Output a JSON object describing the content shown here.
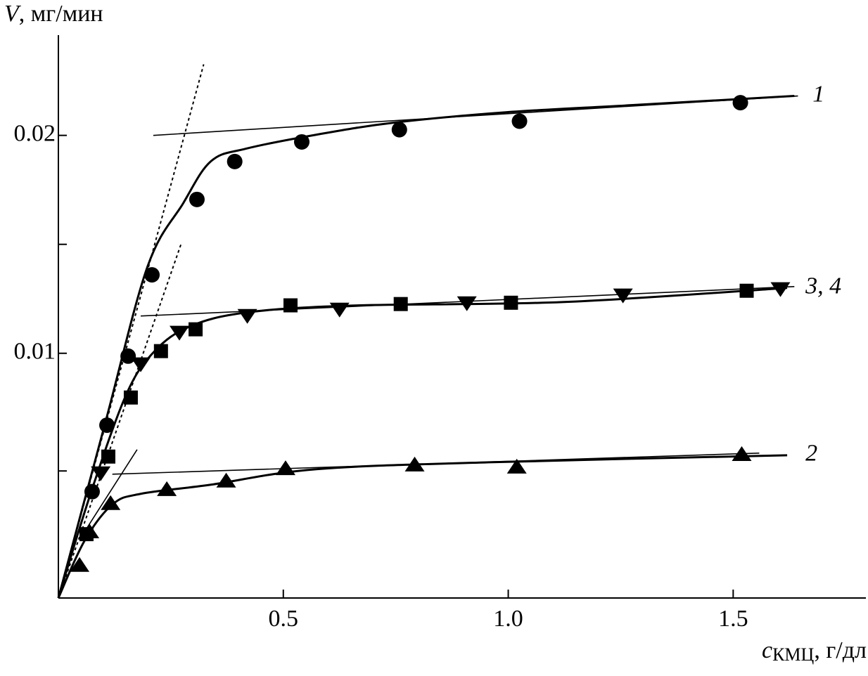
{
  "chart_data": {
    "type": "scatter",
    "y_label": {
      "symbol": "V",
      "unit": ", мг/мин"
    },
    "x_label": {
      "symbol": "c",
      "subscript": "КМЦ",
      "unit": ", г/дл"
    },
    "xlim": [
      0,
      1.795
    ],
    "ylim": [
      -0.00123,
      0.0246
    ],
    "xticks": [
      0.5,
      {
        "value": 1,
        "label": "1.0"
      },
      1.5
    ],
    "yticks": [
      0.01,
      0.02
    ],
    "yminorticks": [
      0.0046,
      0.015
    ],
    "series": [
      {
        "marker": "circle",
        "color": "#000000",
        "x": [
          0.075,
          0.108,
          0.155,
          0.208,
          0.308,
          0.392,
          0.541,
          0.758,
          1.025,
          1.516
        ],
        "values": [
          0.00365,
          0.0067,
          0.00987,
          0.0136,
          0.01706,
          0.0188,
          0.0197,
          0.02026,
          0.02065,
          0.0215
        ]
      },
      {
        "marker": "triangle-up",
        "color": "#000000",
        "x": [
          0.047,
          0.069,
          0.116,
          0.241,
          0.373,
          0.505,
          0.792,
          1.019,
          1.519
        ],
        "values": [
          0.00026,
          0.0018,
          0.0031,
          0.00374,
          0.00413,
          0.0047,
          0.00487,
          0.00477,
          0.00535
        ]
      },
      {
        "marker": "square",
        "color": "#000000",
        "x": [
          0.0625,
          0.111,
          0.161,
          0.228,
          0.305,
          0.516,
          0.761,
          1.006,
          1.53
        ],
        "values": [
          0.0017,
          0.00526,
          0.00797,
          0.0101,
          0.0111,
          0.0122,
          0.01226,
          0.01232,
          0.01287
        ]
      },
      {
        "marker": "triangle-down",
        "color": "#000000",
        "x": [
          0.094,
          0.183,
          0.269,
          0.42,
          0.625,
          0.908,
          1.255,
          1.605
        ],
        "values": [
          0.00452,
          0.00952,
          0.01097,
          0.01174,
          0.01203,
          0.01232,
          0.01268,
          0.01297
        ]
      }
    ],
    "curves": [
      {
        "x": [
          0,
          0.105,
          0.198,
          0.277,
          0.339,
          0.417,
          0.573,
          0.745,
          0.995,
          1.277,
          1.636
        ],
        "values": [
          -0.00123,
          0.00687,
          0.01397,
          0.01687,
          0.01881,
          0.01939,
          0.02003,
          0.02058,
          0.02106,
          0.02139,
          0.02181
        ]
      },
      {
        "x": [
          0,
          0.058,
          0.12,
          0.183,
          0.339,
          0.573,
          0.964,
          1.62
        ],
        "values": [
          -0.00123,
          0.00139,
          0.00306,
          0.00355,
          0.00397,
          0.00468,
          0.005,
          0.00532
        ]
      },
      {
        "x": [
          0,
          0.073,
          0.152,
          0.214,
          0.292,
          0.417,
          0.652,
          1.12,
          1.62
        ],
        "values": [
          -0.00123,
          0.00365,
          0.00816,
          0.0101,
          0.01123,
          0.01187,
          0.01219,
          0.01235,
          0.013
        ]
      }
    ],
    "lines": [
      {
        "style": "solid",
        "x": [
          0.211,
          1.644
        ],
        "values": [
          0.02,
          0.02181
        ]
      },
      {
        "style": "solid",
        "x": [
          0.183,
          1.636
        ],
        "values": [
          0.01171,
          0.01306
        ]
      },
      {
        "style": "solid",
        "x": [
          0.12,
          1.558
        ],
        "values": [
          0.00445,
          0.00542
        ]
      },
      {
        "style": "solid",
        "x": [
          0.055,
          0.175
        ],
        "values": [
          0.00171,
          0.00558
        ]
      },
      {
        "style": "dashed",
        "x": [
          0,
          0.323
        ],
        "values": [
          -0.00123,
          0.02326
        ]
      },
      {
        "style": "dashed",
        "x": [
          0,
          0.273
        ],
        "values": [
          -0.00123,
          0.01503
        ]
      }
    ],
    "annotations": [
      {
        "text": "1",
        "curve": 0
      },
      {
        "text": "3, 4",
        "curve": 2
      },
      {
        "text": "2",
        "curve": 1
      }
    ]
  }
}
